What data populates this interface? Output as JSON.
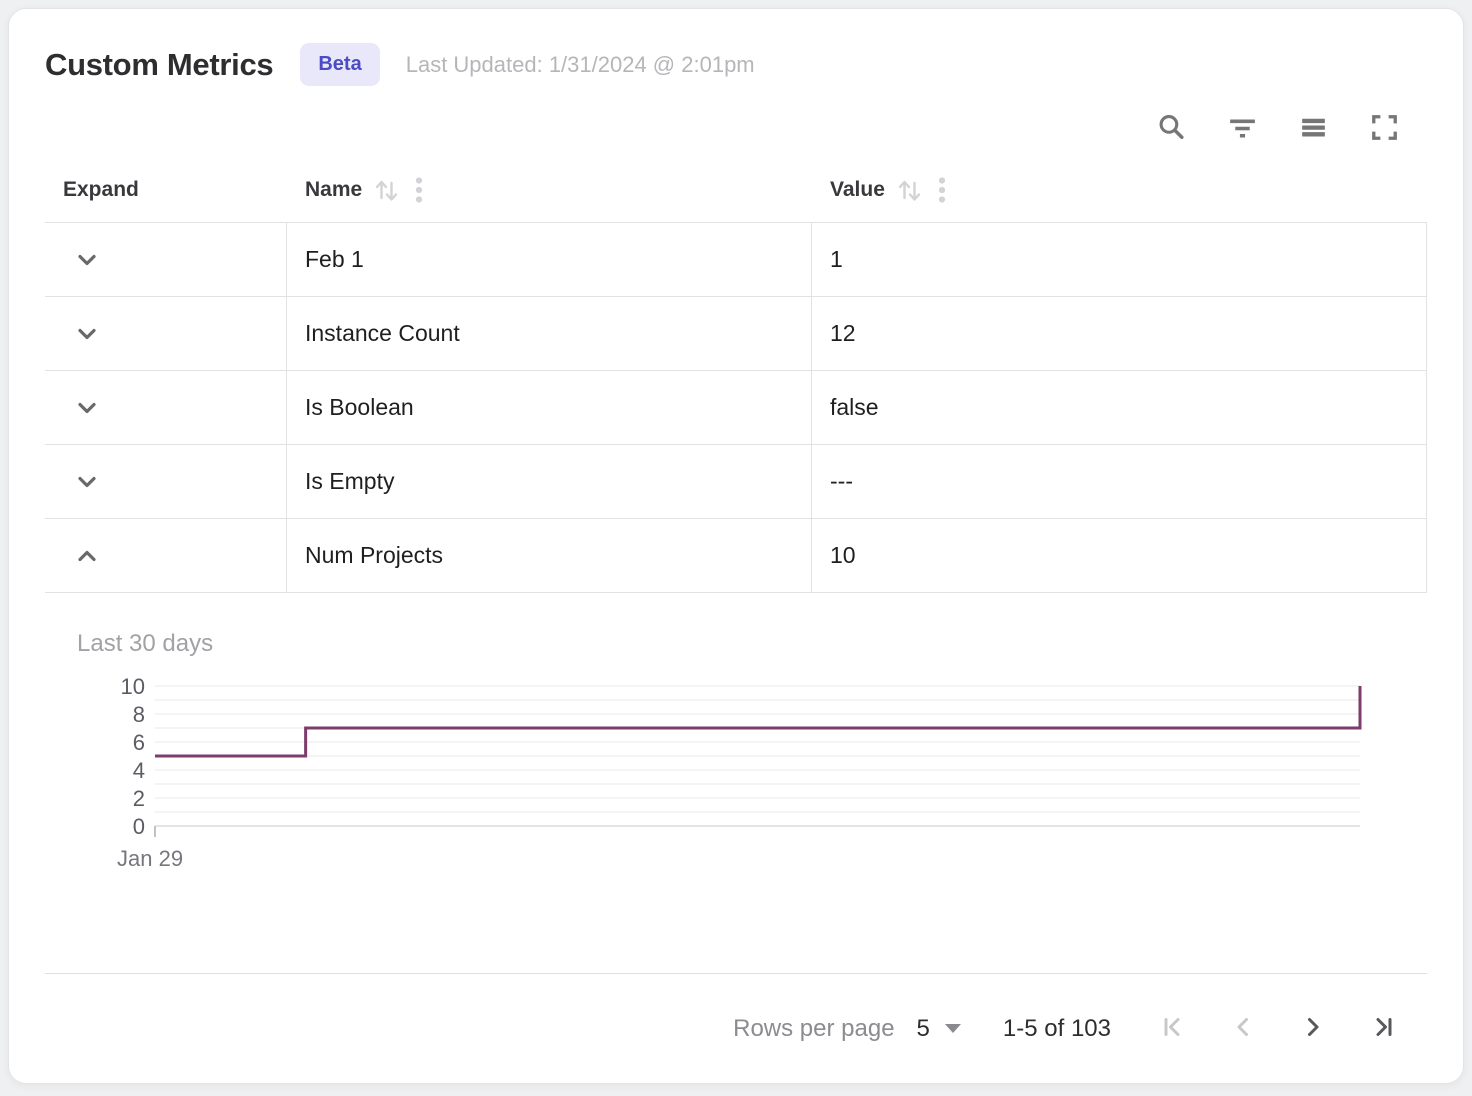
{
  "page": {
    "title": "Custom Metrics",
    "badge": "Beta",
    "last_updated": "Last Updated: 1/31/2024 @ 2:01pm"
  },
  "toolbar": {
    "icons": [
      "search-icon",
      "filter-icon",
      "density-icon",
      "fullscreen-icon"
    ]
  },
  "table": {
    "headers": {
      "expand": "Expand",
      "name": "Name",
      "value": "Value"
    },
    "rows": [
      {
        "name": "Feb 1",
        "value": "1",
        "expanded": false
      },
      {
        "name": "Instance Count",
        "value": "12",
        "expanded": false
      },
      {
        "name": "Is Boolean",
        "value": "false",
        "expanded": false
      },
      {
        "name": "Is Empty",
        "value": "---",
        "expanded": false
      },
      {
        "name": "Num Projects",
        "value": "10",
        "expanded": true
      }
    ]
  },
  "chart_data": {
    "type": "line",
    "step": "after",
    "title": "Last 30 days",
    "series": [
      {
        "name": "Num Projects",
        "points": [
          {
            "x_fraction": 0.0,
            "y": 5
          },
          {
            "x_fraction": 0.125,
            "y": 5
          },
          {
            "x_fraction": 0.125,
            "y": 7
          },
          {
            "x_fraction": 1.0,
            "y": 7
          },
          {
            "x_fraction": 1.0,
            "y": 10
          }
        ]
      }
    ],
    "x_first_tick_label": "Jan 29",
    "x_range_days": 30,
    "ylim": [
      0,
      10
    ],
    "y_ticks": [
      0,
      2,
      4,
      6,
      8,
      10
    ],
    "grid": {
      "horizontal_every": 1
    },
    "legend": "none",
    "line_color": "#7d3c6c"
  },
  "footer": {
    "rows_per_page_label": "Rows per page",
    "rows_per_page_value": "5",
    "range_label": "1-5 of 103",
    "pagination": {
      "first_page_enabled": false,
      "previous_page_enabled": false,
      "next_page_enabled": true,
      "last_page_enabled": true
    }
  },
  "colors": {
    "badge_bg": "#e9e8fb",
    "badge_text": "#4c4bc4",
    "chart_line": "#7d3c6c",
    "grid_border": "#e2e2e5",
    "muted_text": "#b6b6ba"
  }
}
